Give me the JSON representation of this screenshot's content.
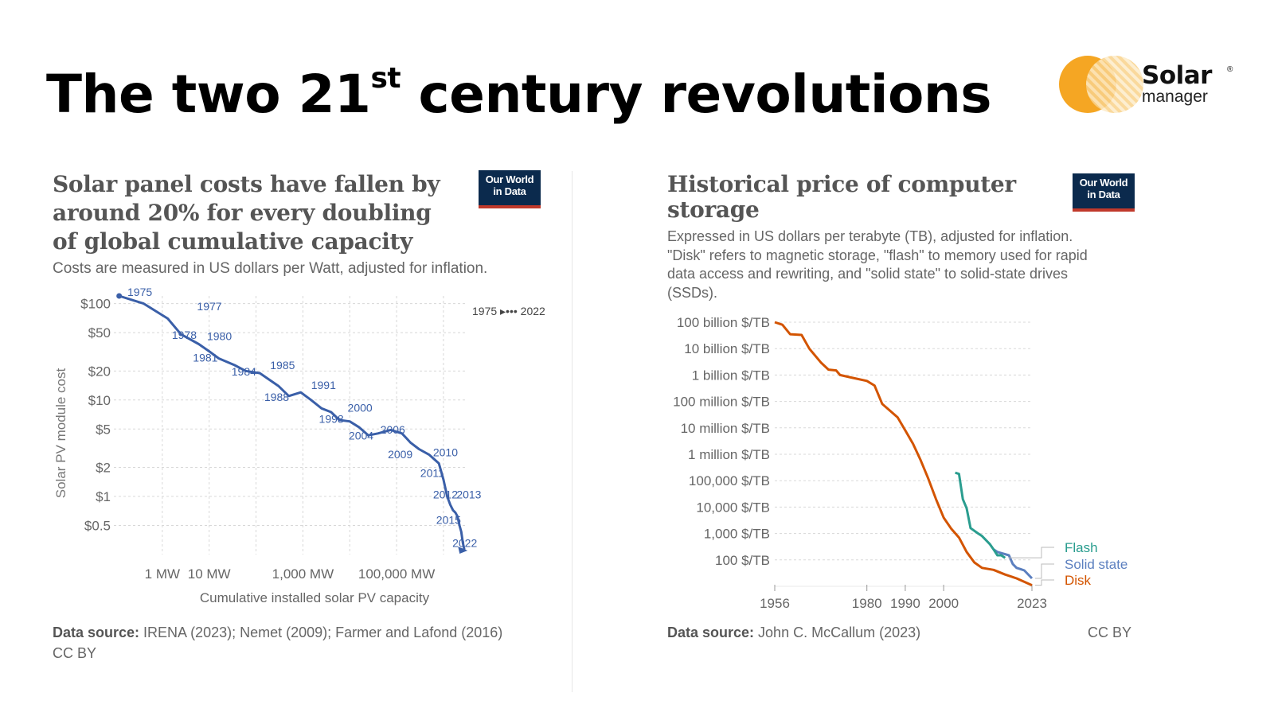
{
  "slide": {
    "title_main": "The two 21",
    "title_sup": "st",
    "title_rest": " century revolutions",
    "logo_brand": "Solar",
    "logo_reg": "®",
    "logo_sub": "manager"
  },
  "owid_badge": {
    "line1": "Our World",
    "line2": "in Data"
  },
  "colors": {
    "line_blue": "#3a5fa8",
    "disk": "#d35400",
    "flash": "#2a9d8f",
    "solid_state": "#5b7fbf",
    "logo_orange": "#f5a623"
  },
  "chart_data": [
    {
      "type": "line",
      "title": "Solar panel costs have fallen by around 20% for every doubling of global cumulative capacity",
      "title_lines": [
        "Solar panel costs have fallen by",
        "around 20% for every doubling",
        "of global cumulative capacity"
      ],
      "subtitle": "Costs are measured in US dollars per Watt, adjusted for inflation.",
      "xlabel": "Cumulative installed solar PV capacity",
      "ylabel": "Solar PV module cost",
      "x_scale": "log",
      "y_scale": "log",
      "xlim": [
        0.1,
        3000000
      ],
      "ylim": [
        0.25,
        120
      ],
      "x_ticks": [
        {
          "value": 1,
          "label": "1 MW"
        },
        {
          "value": 10,
          "label": "10 MW"
        },
        {
          "value": 1000,
          "label": "1,000 MW"
        },
        {
          "value": 100000,
          "label": "100,000 MW"
        }
      ],
      "y_ticks": [
        {
          "value": 100,
          "label": "$100"
        },
        {
          "value": 50,
          "label": "$50"
        },
        {
          "value": 20,
          "label": "$20"
        },
        {
          "value": 10,
          "label": "$10"
        },
        {
          "value": 5,
          "label": "$5"
        },
        {
          "value": 2,
          "label": "$2"
        },
        {
          "value": 1,
          "label": "$1"
        },
        {
          "value": 0.5,
          "label": "$0.5"
        }
      ],
      "legend": "1975 ▸••• 2022",
      "series": [
        {
          "name": "Solar PV module cost",
          "points": [
            {
              "x": 0.12,
              "y": 120
            },
            {
              "x": 0.4,
              "y": 100
            },
            {
              "x": 1.3,
              "y": 70
            },
            {
              "x": 2.5,
              "y": 48
            },
            {
              "x": 6,
              "y": 38
            },
            {
              "x": 10,
              "y": 32
            },
            {
              "x": 16,
              "y": 27
            },
            {
              "x": 35,
              "y": 23
            },
            {
              "x": 60,
              "y": 20
            },
            {
              "x": 120,
              "y": 19
            },
            {
              "x": 300,
              "y": 14
            },
            {
              "x": 500,
              "y": 11
            },
            {
              "x": 900,
              "y": 12
            },
            {
              "x": 1500,
              "y": 10
            },
            {
              "x": 2500,
              "y": 8.2
            },
            {
              "x": 4000,
              "y": 7.5
            },
            {
              "x": 6000,
              "y": 6.2
            },
            {
              "x": 10000,
              "y": 6
            },
            {
              "x": 16000,
              "y": 5.2
            },
            {
              "x": 25000,
              "y": 4.3
            },
            {
              "x": 40000,
              "y": 4.5
            },
            {
              "x": 75000,
              "y": 4.9
            },
            {
              "x": 130000,
              "y": 4.5
            },
            {
              "x": 200000,
              "y": 3.6
            },
            {
              "x": 300000,
              "y": 3.1
            },
            {
              "x": 500000,
              "y": 2.7
            },
            {
              "x": 800000,
              "y": 2.2
            },
            {
              "x": 1000000,
              "y": 1.5
            },
            {
              "x": 1200000,
              "y": 1.0
            },
            {
              "x": 1400000,
              "y": 0.82
            },
            {
              "x": 1600000,
              "y": 0.72
            },
            {
              "x": 1800000,
              "y": 0.68
            },
            {
              "x": 2000000,
              "y": 0.62
            },
            {
              "x": 2200000,
              "y": 0.5
            },
            {
              "x": 2400000,
              "y": 0.43
            },
            {
              "x": 2600000,
              "y": 0.33
            },
            {
              "x": 2800000,
              "y": 0.28
            }
          ]
        }
      ],
      "annotations": [
        {
          "label": "1975",
          "x": 0.18,
          "y": 120
        },
        {
          "label": "1977",
          "x": 5.5,
          "y": 85
        },
        {
          "label": "1978",
          "x": 1.6,
          "y": 43
        },
        {
          "label": "1980",
          "x": 9,
          "y": 42
        },
        {
          "label": "1981",
          "x": 4.5,
          "y": 25
        },
        {
          "label": "1984",
          "x": 30,
          "y": 18
        },
        {
          "label": "1985",
          "x": 200,
          "y": 21
        },
        {
          "label": "1988",
          "x": 150,
          "y": 9.8
        },
        {
          "label": "1991",
          "x": 1500,
          "y": 13
        },
        {
          "label": "1998",
          "x": 2200,
          "y": 5.8
        },
        {
          "label": "2000",
          "x": 9000,
          "y": 7.6
        },
        {
          "label": "2004",
          "x": 9500,
          "y": 3.9
        },
        {
          "label": "2006",
          "x": 45000,
          "y": 4.5
        },
        {
          "label": "2009",
          "x": 65000,
          "y": 2.5
        },
        {
          "label": "2010",
          "x": 600000,
          "y": 2.6
        },
        {
          "label": "2011",
          "x": 320000,
          "y": 1.6
        },
        {
          "label": "2012",
          "x": 600000,
          "y": 0.95
        },
        {
          "label": "2013",
          "x": 1900000,
          "y": 0.95
        },
        {
          "label": "2015",
          "x": 700000,
          "y": 0.52
        },
        {
          "label": "2022",
          "x": 1550000,
          "y": 0.3
        }
      ],
      "source_label": "Data source:",
      "source_text": " IRENA (2023); Nemet (2009); Farmer and Lafond (2016)",
      "license": "CC BY"
    },
    {
      "type": "line",
      "title": "Historical price of computer storage",
      "title_lines": [
        "Historical price of computer",
        "storage"
      ],
      "subtitle_lines": [
        "Expressed in US dollars per terabyte (TB), adjusted for inflation.",
        "\"Disk\" refers to magnetic storage, \"flash\" to memory used for rapid",
        "data access and rewriting, and \"solid state\" to solid-state drives",
        "(SSDs)."
      ],
      "xlabel": "",
      "ylabel": "",
      "y_scale": "log",
      "xlim": [
        1956,
        2023
      ],
      "ylim": [
        10,
        100000000000
      ],
      "x_ticks": [
        {
          "value": 1956,
          "label": "1956"
        },
        {
          "value": 1980,
          "label": "1980"
        },
        {
          "value": 1990,
          "label": "1990"
        },
        {
          "value": 2000,
          "label": "2000"
        },
        {
          "value": 2023,
          "label": "2023"
        }
      ],
      "y_ticks": [
        {
          "value": 100000000000,
          "label": "100 billion $/TB"
        },
        {
          "value": 10000000000,
          "label": "10 billion $/TB"
        },
        {
          "value": 1000000000,
          "label": "1 billion $/TB"
        },
        {
          "value": 100000000,
          "label": "100 million $/TB"
        },
        {
          "value": 10000000,
          "label": "10 million $/TB"
        },
        {
          "value": 1000000,
          "label": "1 million $/TB"
        },
        {
          "value": 100000,
          "label": "100,000 $/TB"
        },
        {
          "value": 10000,
          "label": "10,000 $/TB"
        },
        {
          "value": 1000,
          "label": "1,000 $/TB"
        },
        {
          "value": 100,
          "label": "100 $/TB"
        }
      ],
      "series": [
        {
          "name": "Disk",
          "points": [
            [
              1956,
              100000000000
            ],
            [
              1958,
              80000000000
            ],
            [
              1960,
              35000000000
            ],
            [
              1963,
              33000000000
            ],
            [
              1965,
              10000000000
            ],
            [
              1968,
              3000000000
            ],
            [
              1970,
              1600000000
            ],
            [
              1972,
              1500000000
            ],
            [
              1973,
              1000000000
            ],
            [
              1976,
              800000000
            ],
            [
              1980,
              600000000
            ],
            [
              1982,
              400000000
            ],
            [
              1984,
              80000000
            ],
            [
              1986,
              45000000
            ],
            [
              1988,
              25000000
            ],
            [
              1990,
              8000000
            ],
            [
              1992,
              2500000
            ],
            [
              1994,
              600000
            ],
            [
              1996,
              120000
            ],
            [
              1998,
              20000
            ],
            [
              2000,
              4000
            ],
            [
              2002,
              1500
            ],
            [
              2004,
              700
            ],
            [
              2006,
              200
            ],
            [
              2008,
              80
            ],
            [
              2010,
              50
            ],
            [
              2013,
              42
            ],
            [
              2016,
              28
            ],
            [
              2019,
              20
            ],
            [
              2023,
              11
            ]
          ]
        },
        {
          "name": "Flash",
          "points": [
            [
              2003,
              200000
            ],
            [
              2004,
              180000
            ],
            [
              2005,
              20000
            ],
            [
              2006,
              9000
            ],
            [
              2007,
              1600
            ],
            [
              2009,
              1000
            ],
            [
              2010,
              800
            ],
            [
              2012,
              400
            ],
            [
              2013,
              250
            ],
            [
              2014,
              150
            ],
            [
              2015,
              150
            ],
            [
              2016,
              120
            ]
          ]
        },
        {
          "name": "Solid state",
          "points": [
            [
              2013,
              250
            ],
            [
              2014,
              200
            ],
            [
              2017,
              150
            ],
            [
              2018,
              70
            ],
            [
              2019,
              50
            ],
            [
              2020,
              45
            ],
            [
              2021,
              40
            ],
            [
              2023,
              20
            ]
          ]
        }
      ],
      "source_label": "Data source:",
      "source_text": " John C. McCallum (2023)",
      "license": "CC BY"
    }
  ]
}
